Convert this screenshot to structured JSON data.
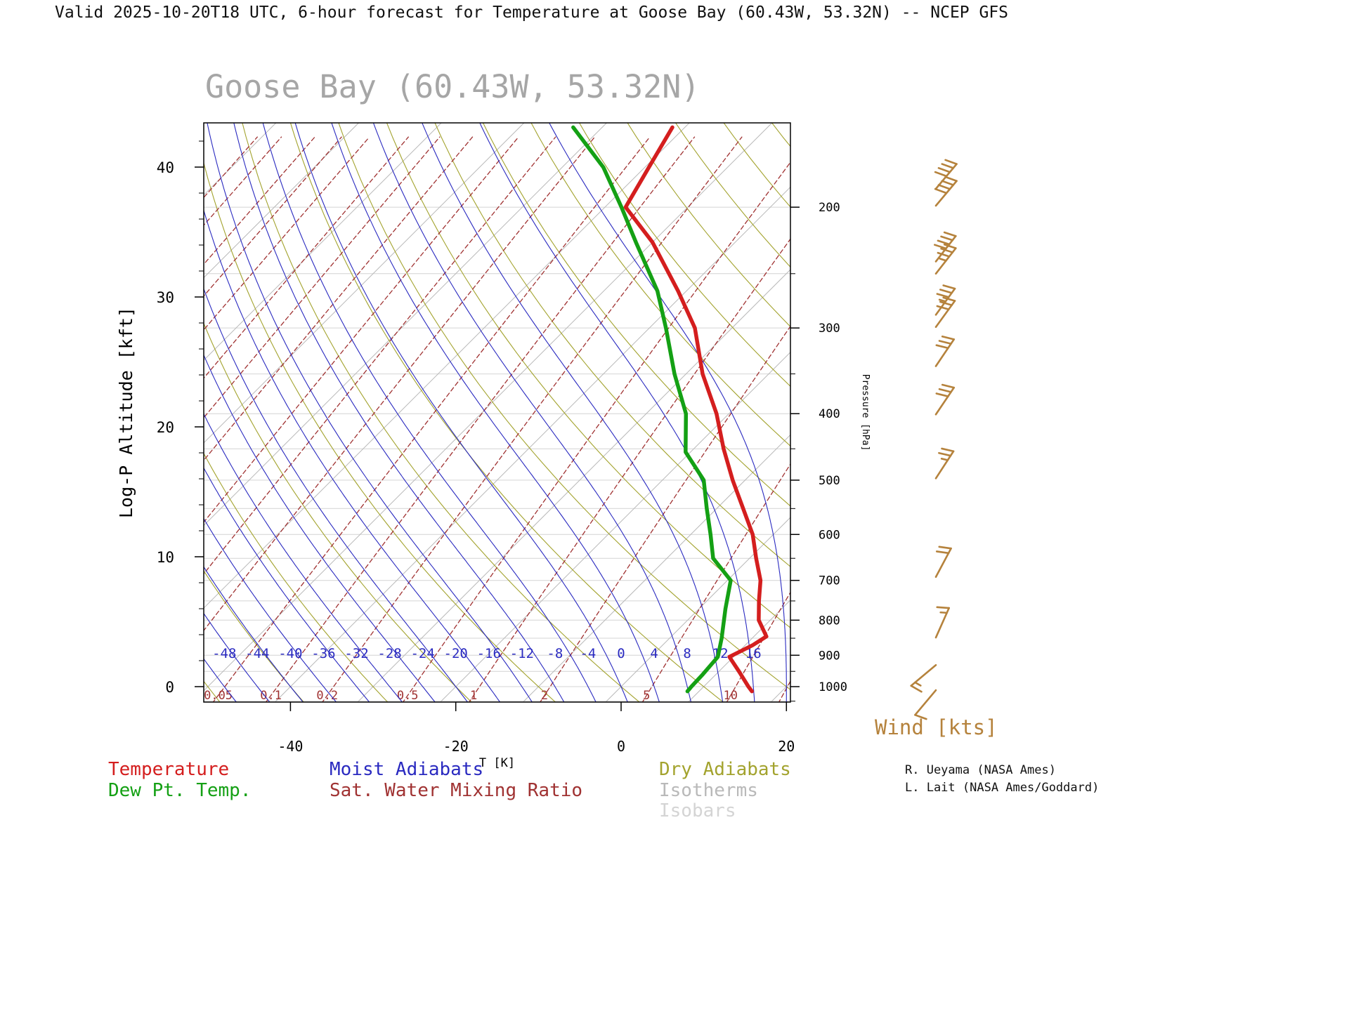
{
  "header": {
    "title": "Valid 2025-10-20T18 UTC, 6-hour forecast for Temperature at Goose Bay (60.43W, 53.32N) -- NCEP GFS"
  },
  "chart_data": {
    "type": "line",
    "subtype": "skew-t-log-p-sounding",
    "title": "Goose Bay (60.43W, 53.32N)",
    "x_axis": {
      "label": "T [K]",
      "ticks": [
        -40,
        -20,
        0,
        20
      ]
    },
    "y_axis_left": {
      "label": "Log-P Altitude [kft]",
      "ticks": [
        0,
        10,
        20,
        30,
        40
      ],
      "minor_step": 2
    },
    "y_axis_right": {
      "label": "Pressure [hPa]",
      "ticks": [
        200,
        300,
        400,
        500,
        600,
        700,
        800,
        900,
        1000
      ]
    },
    "isotherms": {
      "start": -120,
      "end": 20,
      "step": 10
    },
    "isobars": {
      "start": 150,
      "end": 1050,
      "step": 50
    },
    "dry_adiabats": {
      "theta_c_start": -50,
      "theta_c_end": 120,
      "step": 10
    },
    "moist_adiabats": {
      "t1000_start": -60,
      "t1000_end": 20,
      "step": 4,
      "labels": [
        -48,
        -44,
        -40,
        -36,
        -32,
        -28,
        -24,
        -20,
        -16,
        -12,
        -8,
        -4,
        0,
        4,
        8,
        12,
        16
      ]
    },
    "mixing_ratio": {
      "values": [
        1e-05,
        2e-05,
        5e-05,
        0.0001,
        0.0002,
        0.0005,
        0.001,
        0.002,
        0.005,
        0.01,
        0.02,
        0.05,
        0.1,
        0.2,
        0.5,
        1,
        2,
        5,
        10,
        15
      ],
      "labels": [
        "0.05",
        "0.1",
        "0.2",
        "0.5",
        "1",
        "2",
        "5",
        "10"
      ]
    },
    "temperature_profile": {
      "color": "#d41e1e",
      "points": [
        [
          1016,
          16.4
        ],
        [
          1000,
          15.4
        ],
        [
          950,
          12.4
        ],
        [
          905,
          9.5
        ],
        [
          870,
          10.9
        ],
        [
          845,
          11.5
        ],
        [
          800,
          8.6
        ],
        [
          750,
          6.3
        ],
        [
          700,
          4.0
        ],
        [
          650,
          0.8
        ],
        [
          600,
          -2.5
        ],
        [
          550,
          -6.8
        ],
        [
          500,
          -11.5
        ],
        [
          450,
          -16.4
        ],
        [
          400,
          -21.5
        ],
        [
          350,
          -28.0
        ],
        [
          300,
          -34.5
        ],
        [
          265,
          -41.0
        ],
        [
          225,
          -50.0
        ],
        [
          200,
          -57.5
        ],
        [
          175,
          -59.5
        ],
        [
          153,
          -61.5
        ]
      ]
    },
    "dewpoint_profile": {
      "color": "#14a014",
      "points": [
        [
          1016,
          8.6
        ],
        [
          1000,
          8.5
        ],
        [
          960,
          8.4
        ],
        [
          905,
          8.1
        ],
        [
          850,
          6.3
        ],
        [
          770,
          3.2
        ],
        [
          700,
          0.4
        ],
        [
          650,
          -4.4
        ],
        [
          600,
          -7.6
        ],
        [
          550,
          -11.2
        ],
        [
          500,
          -15.0
        ],
        [
          455,
          -20.6
        ],
        [
          400,
          -25.2
        ],
        [
          350,
          -31.4
        ],
        [
          300,
          -38.0
        ],
        [
          265,
          -43.5
        ],
        [
          225,
          -52.0
        ],
        [
          200,
          -58.0
        ],
        [
          175,
          -65.0
        ],
        [
          153,
          -73.5
        ]
      ]
    },
    "wind": {
      "label": "Wind [kts]",
      "color": "#b5823c",
      "barbs": [
        {
          "p": 188,
          "kts": 40,
          "dir": 40
        },
        {
          "p": 199,
          "kts": 40,
          "dir": 40
        },
        {
          "p": 240,
          "kts": 40,
          "dir": 38
        },
        {
          "p": 250,
          "kts": 35,
          "dir": 38
        },
        {
          "p": 287,
          "kts": 35,
          "dir": 36
        },
        {
          "p": 299,
          "kts": 30,
          "dir": 36
        },
        {
          "p": 341,
          "kts": 30,
          "dir": 34
        },
        {
          "p": 401,
          "kts": 30,
          "dir": 34
        },
        {
          "p": 497,
          "kts": 25,
          "dir": 33
        },
        {
          "p": 692,
          "kts": 20,
          "dir": 28
        },
        {
          "p": 848,
          "kts": 15,
          "dir": 24
        },
        {
          "p": 930,
          "kts": 15,
          "dir": 230
        },
        {
          "p": 1012,
          "kts": 10,
          "dir": 220
        }
      ]
    },
    "legend": {
      "temperature": {
        "label": "Temperature",
        "color": "#d41e1e"
      },
      "dewpoint": {
        "label": "Dew Pt. Temp.",
        "color": "#14a014"
      },
      "moist_adiabats": {
        "label": "Moist Adiabats",
        "color": "#2a2ac0"
      },
      "mixing_ratio": {
        "label": "Sat. Water Mixing Ratio",
        "color": "#a03232"
      },
      "dry_adiabats": {
        "label": "Dry Adiabats",
        "color": "#a3a32e"
      },
      "isotherms": {
        "label": "Isotherms",
        "color": "#b9b9b9"
      },
      "isobars": {
        "label": "Isobars",
        "color": "#d4d4d4"
      }
    },
    "credits": {
      "line1": "R. Ueyama (NASA Ames)",
      "line2": "L. Lait (NASA Ames/Goddard)"
    }
  }
}
